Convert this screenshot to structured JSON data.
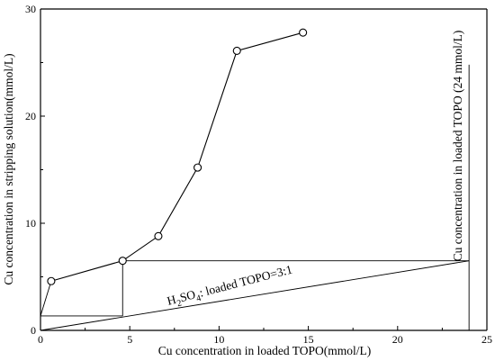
{
  "chart_data": {
    "type": "line",
    "xlabel": "Cu concentration in loaded TOPO(mmol/L)",
    "ylabel": "Cu concentration in stripping solution(mmol/L)",
    "xlim": [
      0,
      25
    ],
    "ylim": [
      0,
      30
    ],
    "xticks": [
      0,
      5,
      10,
      15,
      20,
      25
    ],
    "yticks": [
      0,
      10,
      20,
      30
    ],
    "grid": false,
    "series": [
      {
        "x": [
          0.6,
          4.6,
          6.6,
          8.8,
          11.0,
          14.7
        ],
        "y": [
          4.6,
          6.5,
          8.8,
          15.2,
          26.1,
          27.8
        ],
        "marker": "open-circle",
        "color": "#000000"
      }
    ],
    "operating_line": {
      "x": [
        0,
        24
      ],
      "y": [
        0,
        6.5
      ]
    },
    "construction_steps": [
      {
        "x": [
          4.6,
          24
        ],
        "y": [
          6.5,
          6.5
        ]
      },
      {
        "x": [
          4.6,
          4.6
        ],
        "y": [
          6.5,
          1.35
        ]
      },
      {
        "x": [
          4.6,
          0
        ],
        "y": [
          1.35,
          1.35
        ]
      },
      {
        "x": [
          0,
          0.6
        ],
        "y": [
          1.35,
          4.6
        ]
      }
    ],
    "vertical_line": {
      "x": 24,
      "y": [
        0,
        24.8
      ]
    },
    "annotations": {
      "ratio_label": "H2SO4: loaded TOPO=3:1",
      "ratio_main_1": "H",
      "ratio_sub_1": "2",
      "ratio_main_2": "SO",
      "ratio_sub_2": "4",
      "ratio_main_3": ": loaded TOPO=3:1",
      "vertical_label": "Cu concentration in loaded TOPO (24 mmol/L)"
    }
  }
}
